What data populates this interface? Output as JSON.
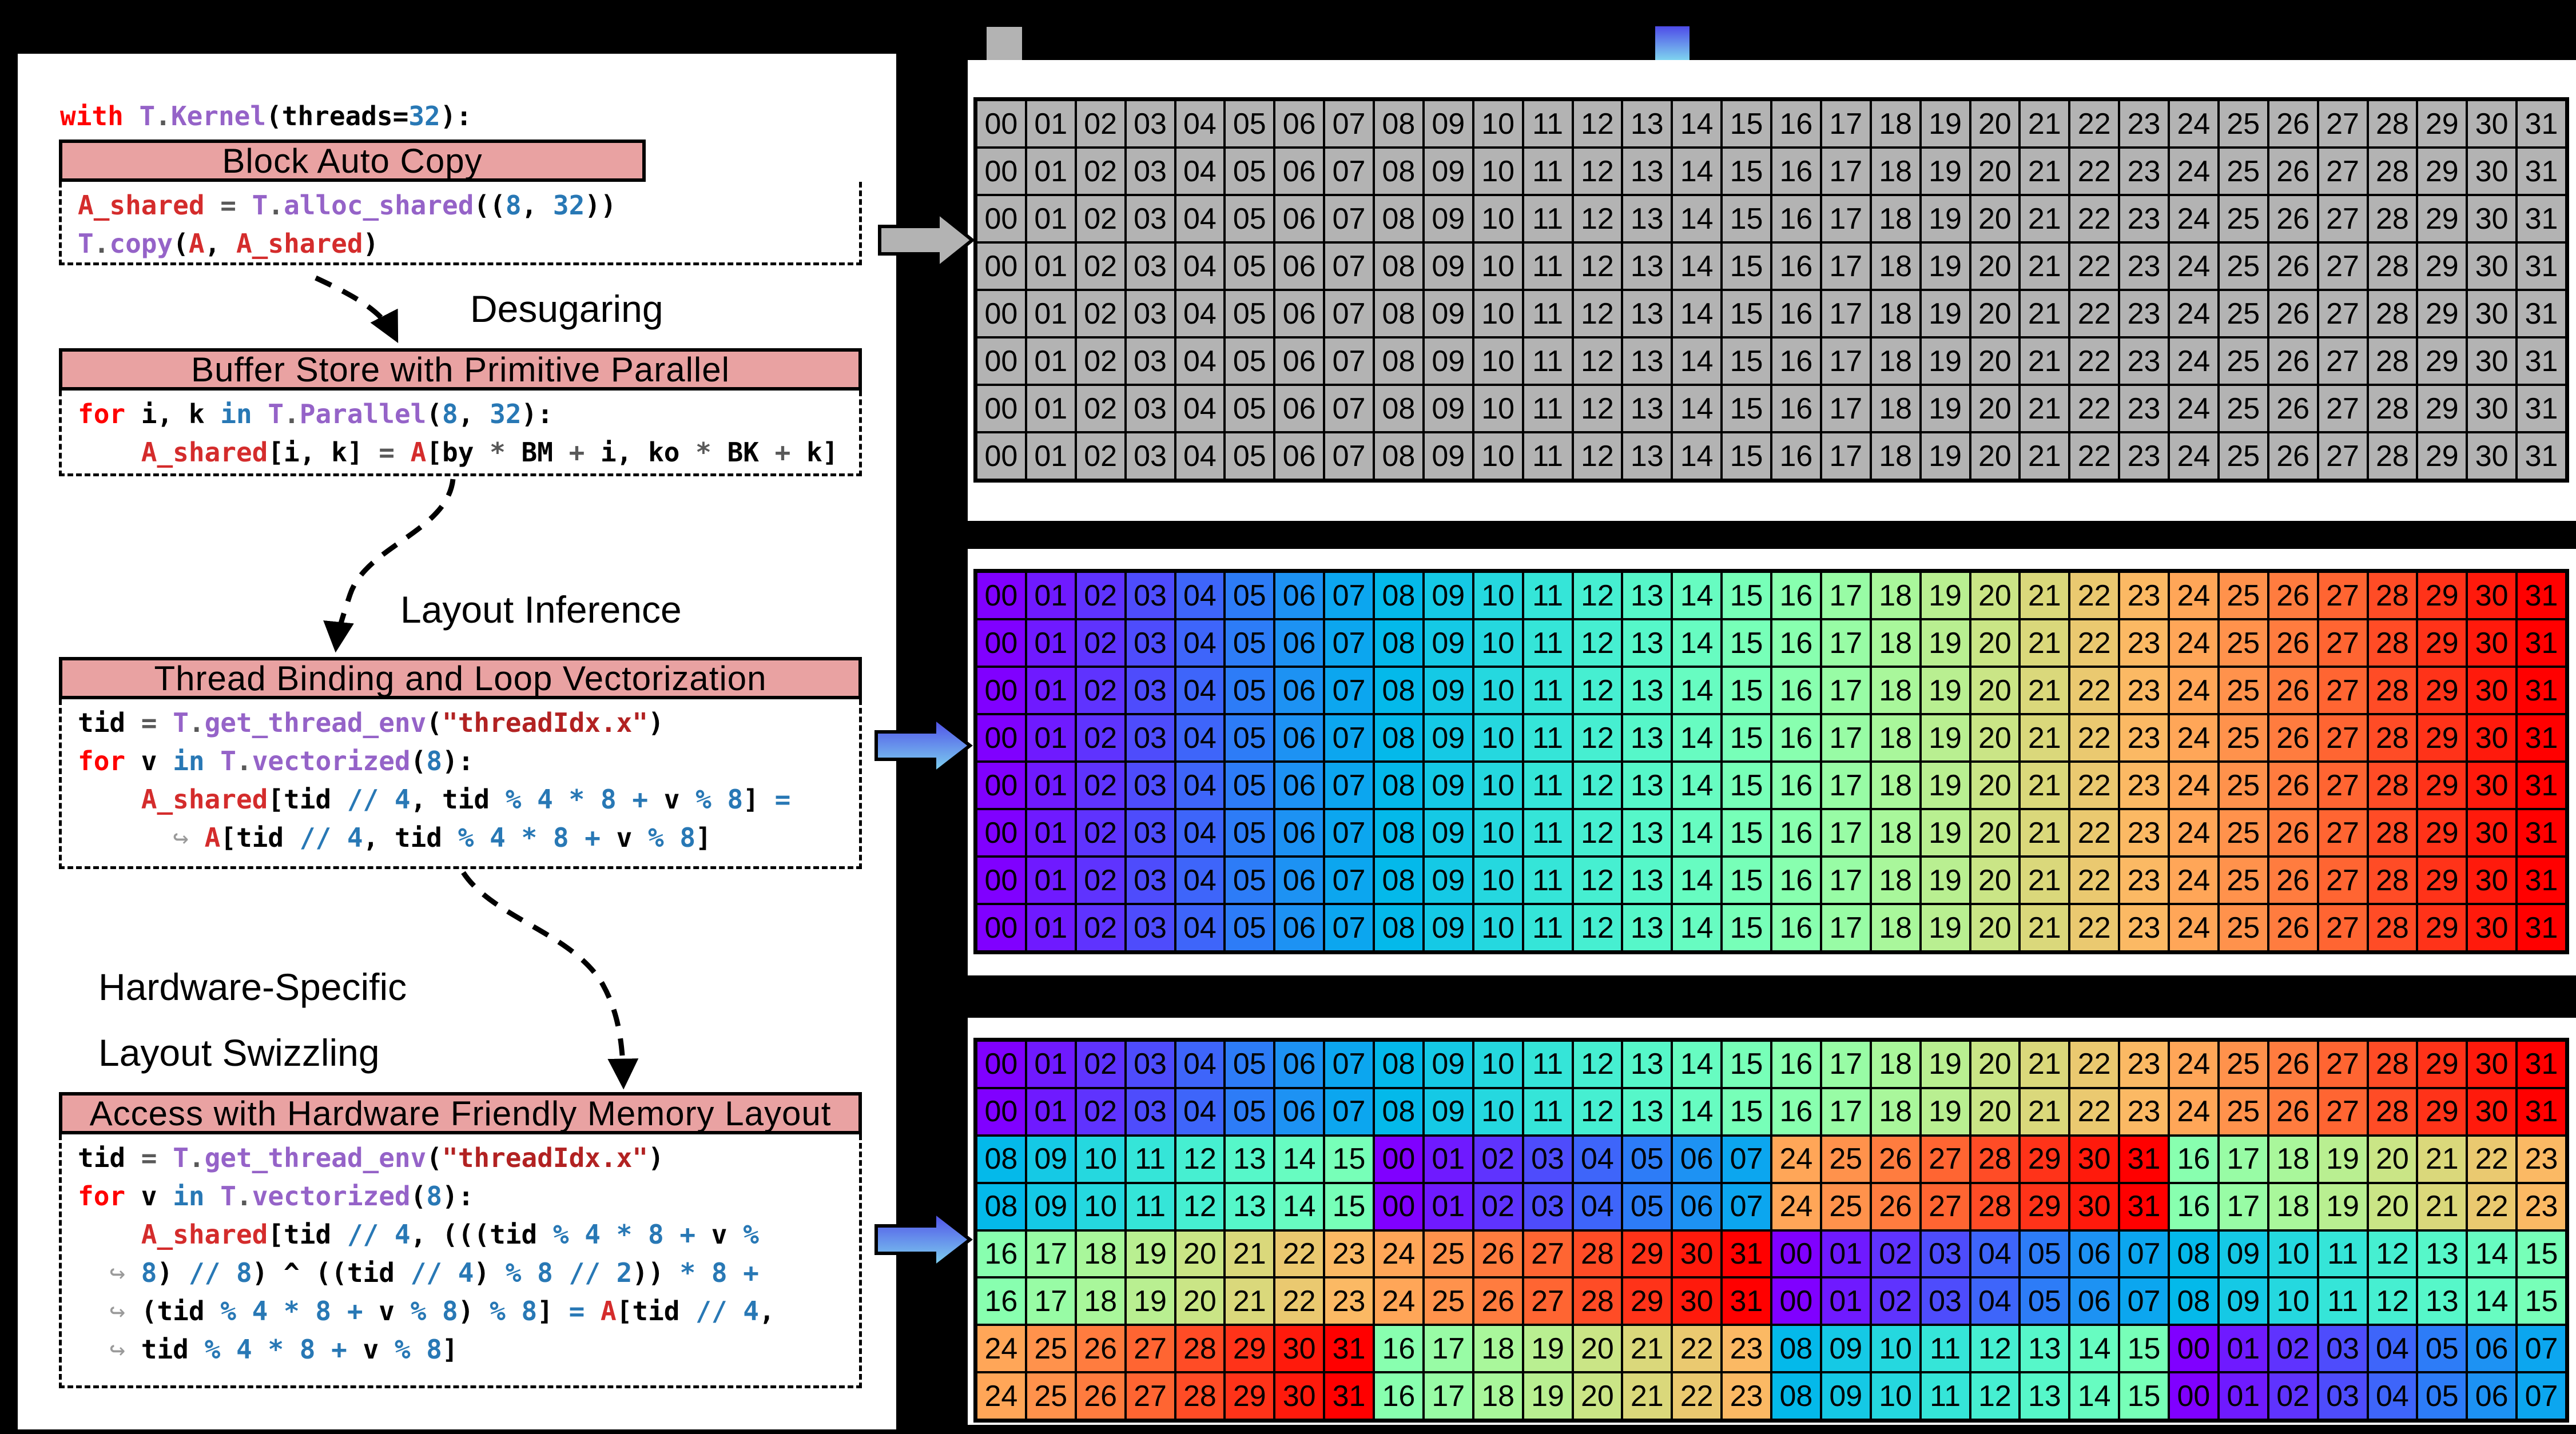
{
  "palette": {
    "background": "#000000",
    "panel_bg": "#FFFFFF",
    "border": "#000000",
    "header_fill": "#E9A2A2",
    "cell_gray": "#B3B3B3",
    "arrow_gray": "#B3B3B3",
    "arrow_blue_top": "#4E4BE8",
    "arrow_blue_bottom": "#7FD6EF",
    "code": {
      "keyword": "#FF0000",
      "variable": "#D42C2C",
      "function": "#9563C8",
      "number": "#2878B5",
      "string": "#B22222",
      "operator": "#595959",
      "plain": "#000000",
      "wrap_arrow": "#9A9A9A"
    }
  },
  "panel": {
    "prelude": [
      [
        "with ",
        "k"
      ],
      [
        "T",
        "f"
      ],
      [
        ".",
        "o"
      ],
      [
        "Kernel",
        "f"
      ],
      [
        "(threads=",
        "b"
      ],
      [
        "32",
        "n"
      ],
      [
        "):",
        "b"
      ]
    ],
    "blocks": [
      {
        "title": "Block Auto Copy",
        "lines": [
          [
            [
              "A_shared",
              "v"
            ],
            [
              " ",
              "b"
            ],
            [
              "=",
              "o"
            ],
            [
              " ",
              "b"
            ],
            [
              "T",
              "f"
            ],
            [
              ".",
              "o"
            ],
            [
              "alloc_shared",
              "f"
            ],
            [
              "((",
              "b"
            ],
            [
              "8",
              "n"
            ],
            [
              ", ",
              "b"
            ],
            [
              "32",
              "n"
            ],
            [
              "))",
              "b"
            ]
          ],
          [
            [
              "T",
              "f"
            ],
            [
              ".",
              "o"
            ],
            [
              "copy",
              "f"
            ],
            [
              "(",
              "b"
            ],
            [
              "A",
              "v"
            ],
            [
              ", ",
              "b"
            ],
            [
              "A_shared",
              "v"
            ],
            [
              ")",
              "b"
            ]
          ]
        ]
      },
      {
        "title": "Buffer Store with Primitive Parallel",
        "lines": [
          [
            [
              "for",
              "k"
            ],
            [
              " i, k ",
              "b"
            ],
            [
              "in",
              "n"
            ],
            [
              " ",
              "b"
            ],
            [
              "T",
              "f"
            ],
            [
              ".",
              "o"
            ],
            [
              "Parallel",
              "f"
            ],
            [
              "(",
              "b"
            ],
            [
              "8",
              "n"
            ],
            [
              ", ",
              "b"
            ],
            [
              "32",
              "n"
            ],
            [
              "):",
              "b"
            ]
          ],
          [
            [
              "    ",
              "b"
            ],
            [
              "A_shared",
              "v"
            ],
            [
              "[i, k] ",
              "b"
            ],
            [
              "=",
              "o"
            ],
            [
              " ",
              "b"
            ],
            [
              "A",
              "v"
            ],
            [
              "[by ",
              "b"
            ],
            [
              "*",
              "o"
            ],
            [
              " BM ",
              "b"
            ],
            [
              "+",
              "o"
            ],
            [
              " i, ko ",
              "b"
            ],
            [
              "*",
              "o"
            ],
            [
              " BK ",
              "b"
            ],
            [
              "+",
              "o"
            ],
            [
              " k]",
              "b"
            ]
          ]
        ]
      },
      {
        "title": "Thread Binding and Loop Vectorization",
        "lines": [
          [
            [
              "tid ",
              "b"
            ],
            [
              "=",
              "o"
            ],
            [
              " ",
              "b"
            ],
            [
              "T",
              "f"
            ],
            [
              ".",
              "o"
            ],
            [
              "get_thread_env",
              "f"
            ],
            [
              "(",
              "b"
            ],
            [
              "\"threadIdx.x\"",
              "s"
            ],
            [
              ")",
              "b"
            ]
          ],
          [
            [
              "for",
              "k"
            ],
            [
              " v ",
              "b"
            ],
            [
              "in",
              "n"
            ],
            [
              " ",
              "b"
            ],
            [
              "T",
              "f"
            ],
            [
              ".",
              "o"
            ],
            [
              "vectorized",
              "f"
            ],
            [
              "(",
              "b"
            ],
            [
              "8",
              "n"
            ],
            [
              "):",
              "b"
            ]
          ],
          [
            [
              "    ",
              "b"
            ],
            [
              "A_shared",
              "v"
            ],
            [
              "[tid ",
              "b"
            ],
            [
              "// 4",
              "n"
            ],
            [
              ", tid ",
              "b"
            ],
            [
              "% 4 * 8 +",
              "n"
            ],
            [
              " v ",
              "b"
            ],
            [
              "% 8",
              "n"
            ],
            [
              "] ",
              "b"
            ],
            [
              "=",
              "n"
            ]
          ],
          [
            [
              "      ",
              "b"
            ],
            [
              "↪ ",
              "w"
            ],
            [
              "A",
              "v"
            ],
            [
              "[tid ",
              "b"
            ],
            [
              "// 4",
              "n"
            ],
            [
              ", tid ",
              "b"
            ],
            [
              "% 4 * 8 +",
              "n"
            ],
            [
              " v ",
              "b"
            ],
            [
              "% 8",
              "n"
            ],
            [
              "]",
              "b"
            ]
          ]
        ]
      },
      {
        "title": "Access with Hardware Friendly Memory Layout",
        "lines": [
          [
            [
              "tid ",
              "b"
            ],
            [
              "=",
              "o"
            ],
            [
              " ",
              "b"
            ],
            [
              "T",
              "f"
            ],
            [
              ".",
              "o"
            ],
            [
              "get_thread_env",
              "f"
            ],
            [
              "(",
              "b"
            ],
            [
              "\"threadIdx.x\"",
              "s"
            ],
            [
              ")",
              "b"
            ]
          ],
          [
            [
              "for",
              "k"
            ],
            [
              " v ",
              "b"
            ],
            [
              "in",
              "n"
            ],
            [
              " ",
              "b"
            ],
            [
              "T",
              "f"
            ],
            [
              ".",
              "o"
            ],
            [
              "vectorized",
              "f"
            ],
            [
              "(",
              "b"
            ],
            [
              "8",
              "n"
            ],
            [
              "):",
              "b"
            ]
          ],
          [
            [
              "    ",
              "b"
            ],
            [
              "A_shared",
              "v"
            ],
            [
              "[tid ",
              "b"
            ],
            [
              "// 4",
              "n"
            ],
            [
              ", (((tid ",
              "b"
            ],
            [
              "% 4 * 8 +",
              "n"
            ],
            [
              " v ",
              "b"
            ],
            [
              "%",
              "n"
            ]
          ],
          [
            [
              "  ",
              "b"
            ],
            [
              "↪ ",
              "w"
            ],
            [
              "8",
              "n"
            ],
            [
              ") ",
              "b"
            ],
            [
              "// 8",
              "n"
            ],
            [
              ") ^ ((tid ",
              "b"
            ],
            [
              "// 4",
              "n"
            ],
            [
              ") ",
              "b"
            ],
            [
              "% 8 // 2",
              "n"
            ],
            [
              ")) ",
              "b"
            ],
            [
              "* 8 +",
              "n"
            ]
          ],
          [
            [
              "  ",
              "b"
            ],
            [
              "↪ ",
              "w"
            ],
            [
              "(tid ",
              "b"
            ],
            [
              "% 4 * 8 +",
              "n"
            ],
            [
              " v ",
              "b"
            ],
            [
              "% 8",
              "n"
            ],
            [
              ") ",
              "b"
            ],
            [
              "% 8",
              "n"
            ],
            [
              "] ",
              "b"
            ],
            [
              "=",
              "n"
            ],
            [
              " ",
              "b"
            ],
            [
              "A",
              "v"
            ],
            [
              "[tid ",
              "b"
            ],
            [
              "// 4",
              "n"
            ],
            [
              ",",
              "b"
            ]
          ],
          [
            [
              "  ",
              "b"
            ],
            [
              "↪ ",
              "w"
            ],
            [
              "tid ",
              "b"
            ],
            [
              "% 4 * 8 +",
              "n"
            ],
            [
              " v ",
              "b"
            ],
            [
              "% 8",
              "n"
            ],
            [
              "]",
              "b"
            ]
          ]
        ]
      }
    ],
    "labels": {
      "desugaring": "Desugaring",
      "layout_inference": "Layout Inference",
      "swizzling_line1": "Hardware-Specific",
      "swizzling_line2": "Layout Swizzling"
    }
  },
  "rainbow_palette": [
    "#8000FF",
    "#6F1AFF",
    "#5F33FE",
    "#4E4CFC",
    "#3E65FA",
    "#2D7CF7",
    "#1D92F3",
    "#0CA6EF",
    "#04B9EA",
    "#15C9E5",
    "#25D8DF",
    "#35E5D8",
    "#46EFD1",
    "#56F7C9",
    "#67FCC1",
    "#77FFB8",
    "#88FFAF",
    "#98FCA5",
    "#A9F79B",
    "#B9EF91",
    "#CAE586",
    "#DAD87B",
    "#EAC970",
    "#FBB964",
    "#FFA658",
    "#FF924C",
    "#FF7C3F",
    "#FF6532",
    "#FF4C26",
    "#FF3319",
    "#FF1A0C",
    "#FF0000"
  ],
  "grids": [
    {
      "name": "global-memory-thread-grid",
      "palette": "gray",
      "rows": [
        "00 01 02 03 04 05 06 07 08 09 10 11 12 13 14 15 16 17 18 19 20 21 22 23 24 25 26 27 28 29 30 31",
        "00 01 02 03 04 05 06 07 08 09 10 11 12 13 14 15 16 17 18 19 20 21 22 23 24 25 26 27 28 29 30 31",
        "00 01 02 03 04 05 06 07 08 09 10 11 12 13 14 15 16 17 18 19 20 21 22 23 24 25 26 27 28 29 30 31",
        "00 01 02 03 04 05 06 07 08 09 10 11 12 13 14 15 16 17 18 19 20 21 22 23 24 25 26 27 28 29 30 31",
        "00 01 02 03 04 05 06 07 08 09 10 11 12 13 14 15 16 17 18 19 20 21 22 23 24 25 26 27 28 29 30 31",
        "00 01 02 03 04 05 06 07 08 09 10 11 12 13 14 15 16 17 18 19 20 21 22 23 24 25 26 27 28 29 30 31",
        "00 01 02 03 04 05 06 07 08 09 10 11 12 13 14 15 16 17 18 19 20 21 22 23 24 25 26 27 28 29 30 31",
        "00 01 02 03 04 05 06 07 08 09 10 11 12 13 14 15 16 17 18 19 20 21 22 23 24 25 26 27 28 29 30 31"
      ]
    },
    {
      "name": "linear-thread-layout-grid",
      "palette": "rainbow",
      "rows": [
        "00 01 02 03 04 05 06 07 08 09 10 11 12 13 14 15 16 17 18 19 20 21 22 23 24 25 26 27 28 29 30 31",
        "00 01 02 03 04 05 06 07 08 09 10 11 12 13 14 15 16 17 18 19 20 21 22 23 24 25 26 27 28 29 30 31",
        "00 01 02 03 04 05 06 07 08 09 10 11 12 13 14 15 16 17 18 19 20 21 22 23 24 25 26 27 28 29 30 31",
        "00 01 02 03 04 05 06 07 08 09 10 11 12 13 14 15 16 17 18 19 20 21 22 23 24 25 26 27 28 29 30 31",
        "00 01 02 03 04 05 06 07 08 09 10 11 12 13 14 15 16 17 18 19 20 21 22 23 24 25 26 27 28 29 30 31",
        "00 01 02 03 04 05 06 07 08 09 10 11 12 13 14 15 16 17 18 19 20 21 22 23 24 25 26 27 28 29 30 31",
        "00 01 02 03 04 05 06 07 08 09 10 11 12 13 14 15 16 17 18 19 20 21 22 23 24 25 26 27 28 29 30 31",
        "00 01 02 03 04 05 06 07 08 09 10 11 12 13 14 15 16 17 18 19 20 21 22 23 24 25 26 27 28 29 30 31"
      ]
    },
    {
      "name": "swizzled-thread-layout-grid",
      "palette": "rainbow",
      "rows": [
        "00 01 02 03 04 05 06 07 08 09 10 11 12 13 14 15 16 17 18 19 20 21 22 23 24 25 26 27 28 29 30 31",
        "00 01 02 03 04 05 06 07 08 09 10 11 12 13 14 15 16 17 18 19 20 21 22 23 24 25 26 27 28 29 30 31",
        "08 09 10 11 12 13 14 15 00 01 02 03 04 05 06 07 24 25 26 27 28 29 30 31 16 17 18 19 20 21 22 23",
        "08 09 10 11 12 13 14 15 00 01 02 03 04 05 06 07 24 25 26 27 28 29 30 31 16 17 18 19 20 21 22 23",
        "16 17 18 19 20 21 22 23 24 25 26 27 28 29 30 31 00 01 02 03 04 05 06 07 08 09 10 11 12 13 14 15",
        "16 17 18 19 20 21 22 23 24 25 26 27 28 29 30 31 00 01 02 03 04 05 06 07 08 09 10 11 12 13 14 15",
        "24 25 26 27 28 29 30 31 16 17 18 19 20 21 22 23 08 09 10 11 12 13 14 15 00 01 02 03 04 05 06 07",
        "24 25 26 27 28 29 30 31 16 17 18 19 20 21 22 23 08 09 10 11 12 13 14 15 00 01 02 03 04 05 06 07"
      ]
    }
  ]
}
